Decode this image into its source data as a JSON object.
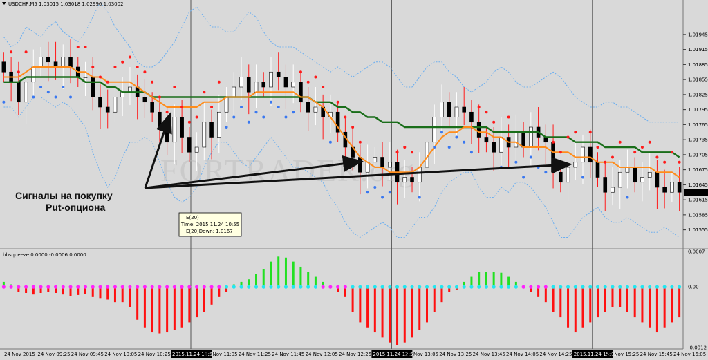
{
  "header": {
    "symbol_info": "USDCHF,M5  1.03015 1.03018 1.02996 1.03002",
    "indicator_title": "bbsqueeze 0.0000 -0.0006 0.0000"
  },
  "watermark": "FORTRADER.org",
  "annotation": {
    "line1": "Сигналы на покупку",
    "line2": "Put-опциона"
  },
  "tooltip": {
    "line1": "__E(20)",
    "line2": "Time: 2015.11.24 10:55",
    "line3": "__E(20)Down: 1.0167"
  },
  "colors": {
    "background": "#d9d9d9",
    "grid": "#555555",
    "bull_candle": "#ffffff",
    "bear_candle": "#000000",
    "ema_green": "#1a6e1a",
    "ema_orange": "#ff8c1a",
    "band": "#6aaef0",
    "psar_red": "#ff1a1a",
    "psar_blue": "#3a78f0",
    "hist_pos": "#22e022",
    "hist_neg": "#ff1010",
    "dot_magenta": "#ff22ff",
    "dot_cyan": "#22e6f0"
  },
  "chart_data": [
    {
      "type": "candlestick",
      "title": "",
      "symbol": "USDCHF",
      "timeframe": "M5",
      "ylim": [
        1.0152,
        1.02
      ],
      "y_ticks": [
        "1.01945",
        "1.01915",
        "1.01885",
        "1.01855",
        "1.01825",
        "1.01795",
        "1.01765",
        "1.01735",
        "1.01705",
        "1.01675",
        "1.01645",
        "1.01615",
        "1.01585",
        "1.01555"
      ],
      "x_ticks": [
        "24 Nov 2015",
        "24 Nov 09:25",
        "24 Nov 09:45",
        "24 Nov 10:05",
        "24 Nov 10:25",
        "2015.11.24 10:50",
        "24 Nov 11:05",
        "24 Nov 11:25",
        "24 Nov 11:45",
        "24 Nov 12:05",
        "24 Nov 12:25",
        "2015.11.24 12:55",
        "24 Nov 13:05",
        "24 Nov 13:25",
        "24 Nov 13:45",
        "24 Nov 14:05",
        "24 Nov 14:25",
        "2015.11.24 15:05",
        "24 Nov 15:25",
        "24 Nov 15:45",
        "24 Nov 16:05"
      ],
      "highlighted_x_ticks": [
        5,
        11,
        17
      ],
      "close": [
        1.0187,
        1.0185,
        1.0181,
        1.0185,
        1.0188,
        1.019,
        1.0189,
        1.0188,
        1.019,
        1.0188,
        1.0186,
        1.0186,
        1.0182,
        1.018,
        1.0179,
        1.0182,
        1.0183,
        1.0184,
        1.0182,
        1.0181,
        1.0179,
        1.0176,
        1.0173,
        1.0178,
        1.0174,
        1.0171,
        1.0172,
        1.0177,
        1.0174,
        1.0179,
        1.0182,
        1.0184,
        1.0186,
        1.0183,
        1.0185,
        1.0184,
        1.0187,
        1.0186,
        1.0184,
        1.0185,
        1.0181,
        1.0179,
        1.018,
        1.0178,
        1.0179,
        1.0175,
        1.0172,
        1.017,
        1.0167,
        1.0169,
        1.017,
        1.0168,
        1.0169,
        1.0165,
        1.0166,
        1.0165,
        1.0168,
        1.0173,
        1.0178,
        1.0181,
        1.0178,
        1.018,
        1.0179,
        1.0177,
        1.0174,
        1.0173,
        1.0171,
        1.0174,
        1.0172,
        1.0175,
        1.0172,
        1.0176,
        1.0174,
        1.0173,
        1.0167,
        1.0165,
        1.0168,
        1.0169,
        1.0172,
        1.0169,
        1.0166,
        1.0163,
        1.0164,
        1.0167,
        1.0168,
        1.0165,
        1.0166,
        1.0167,
        1.0164,
        1.0163,
        1.0165,
        1.0163
      ],
      "ema_green": [
        1.0185,
        1.0185,
        1.0185,
        1.0186,
        1.0186,
        1.0186,
        1.0186,
        1.0186,
        1.0186,
        1.0186,
        1.0186,
        1.0185,
        1.0185,
        1.0185,
        1.0184,
        1.0184,
        1.0183,
        1.0183,
        1.0183,
        1.0183,
        1.0182,
        1.0182,
        1.0182,
        1.0182,
        1.0182,
        1.0182,
        1.0182,
        1.0182,
        1.0182,
        1.0182,
        1.0182,
        1.0182,
        1.0182,
        1.0182,
        1.0182,
        1.0182,
        1.0182,
        1.0182,
        1.0182,
        1.0182,
        1.0182,
        1.0182,
        1.0181,
        1.0181,
        1.0181,
        1.018,
        1.018,
        1.0179,
        1.0179,
        1.0178,
        1.0178,
        1.0177,
        1.0177,
        1.0177,
        1.0176,
        1.0176,
        1.0176,
        1.0176,
        1.0176,
        1.0176,
        1.0176,
        1.0176,
        1.0176,
        1.0176,
        1.0176,
        1.0176,
        1.0175,
        1.0175,
        1.0175,
        1.0175,
        1.0175,
        1.0175,
        1.0175,
        1.0174,
        1.0174,
        1.0174,
        1.0174,
        1.0173,
        1.0173,
        1.0173,
        1.0173,
        1.0172,
        1.0172,
        1.0172,
        1.0172,
        1.0172,
        1.0171,
        1.0171,
        1.0171,
        1.0171,
        1.0171,
        1.017
      ],
      "ema_orange": [
        1.0186,
        1.0186,
        1.0186,
        1.0187,
        1.0188,
        1.0188,
        1.0188,
        1.0188,
        1.0188,
        1.0188,
        1.0187,
        1.0187,
        1.0186,
        1.0186,
        1.0185,
        1.0185,
        1.0185,
        1.0185,
        1.0184,
        1.0183,
        1.0182,
        1.0181,
        1.018,
        1.018,
        1.018,
        1.018,
        1.018,
        1.0181,
        1.0181,
        1.0181,
        1.0182,
        1.0182,
        1.0182,
        1.0182,
        1.0183,
        1.0183,
        1.0183,
        1.0183,
        1.0183,
        1.0183,
        1.0182,
        1.0182,
        1.0181,
        1.018,
        1.0178,
        1.0176,
        1.0174,
        1.0172,
        1.017,
        1.0169,
        1.0168,
        1.0168,
        1.0167,
        1.0167,
        1.0167,
        1.0167,
        1.0168,
        1.017,
        1.0172,
        1.0174,
        1.0175,
        1.0175,
        1.0176,
        1.0176,
        1.0175,
        1.0175,
        1.0174,
        1.0174,
        1.0173,
        1.0173,
        1.0172,
        1.0172,
        1.0172,
        1.0172,
        1.0171,
        1.0171,
        1.0171,
        1.017,
        1.017,
        1.017,
        1.0169,
        1.0169,
        1.0169,
        1.0168,
        1.0168,
        1.0168,
        1.0168,
        1.0168,
        1.0167,
        1.0167,
        1.0167,
        1.0166
      ],
      "band_upper": [
        1.0194,
        1.0192,
        1.0193,
        1.0196,
        1.0195,
        1.0194,
        1.0196,
        1.0197,
        1.0195,
        1.0194,
        1.0193,
        1.0195,
        1.0198,
        1.0201,
        1.0199,
        1.0196,
        1.0194,
        1.0192,
        1.0189,
        1.0188,
        1.0188,
        1.0189,
        1.0191,
        1.0193,
        1.0196,
        1.0199,
        1.02,
        1.0198,
        1.0196,
        1.0196,
        1.0195,
        1.0195,
        1.0197,
        1.0199,
        1.0198,
        1.0195,
        1.0193,
        1.0192,
        1.0192,
        1.0192,
        1.0191,
        1.019,
        1.0189,
        1.0188,
        1.0187,
        1.0188,
        1.0187,
        1.0186,
        1.0187,
        1.0188,
        1.0189,
        1.0189,
        1.0188,
        1.0186,
        1.0184,
        1.0184,
        1.0186,
        1.0188,
        1.0189,
        1.0189,
        1.0187,
        1.0186,
        1.0184,
        1.0183,
        1.0184,
        1.0185,
        1.0187,
        1.0188,
        1.0187,
        1.0185,
        1.0184,
        1.0184,
        1.0185,
        1.0186,
        1.0187,
        1.0186,
        1.0184,
        1.0182,
        1.0181,
        1.018,
        1.018,
        1.0181,
        1.0181,
        1.018,
        1.018,
        1.0179,
        1.0178,
        1.0177,
        1.0177,
        1.0177,
        1.0177,
        1.0177
      ],
      "band_lower": [
        1.018,
        1.018,
        1.0178,
        1.018,
        1.0182,
        1.0182,
        1.0181,
        1.018,
        1.0181,
        1.018,
        1.0178,
        1.0176,
        1.0171,
        1.0167,
        1.0164,
        1.0166,
        1.017,
        1.0173,
        1.0173,
        1.0174,
        1.0173,
        1.0169,
        1.0165,
        1.0162,
        1.0161,
        1.0162,
        1.0164,
        1.0168,
        1.0171,
        1.0173,
        1.0173,
        1.0171,
        1.0169,
        1.0168,
        1.017,
        1.0172,
        1.0174,
        1.0172,
        1.017,
        1.0168,
        1.0168,
        1.0167,
        1.0166,
        1.0165,
        1.0162,
        1.016,
        1.0157,
        1.0155,
        1.0154,
        1.0155,
        1.0156,
        1.0157,
        1.0156,
        1.0154,
        1.0154,
        1.0156,
        1.0158,
        1.0158,
        1.016,
        1.0163,
        1.0165,
        1.0166,
        1.0167,
        1.0167,
        1.0164,
        1.0162,
        1.0162,
        1.0164,
        1.0163,
        1.0165,
        1.0165,
        1.0164,
        1.0162,
        1.016,
        1.0157,
        1.0154,
        1.0154,
        1.0156,
        1.0158,
        1.0159,
        1.016,
        1.0158,
        1.0157,
        1.0157,
        1.0158,
        1.0157,
        1.0156,
        1.0155,
        1.0155,
        1.0156,
        1.0155,
        1.0154
      ]
    },
    {
      "type": "bar",
      "title": "bbsqueeze",
      "ylim": [
        -0.0012,
        0.0007
      ],
      "y_ticks": [
        "0.0007",
        "0.00",
        "-0.0012"
      ],
      "values": [
        0.0001,
        5e-05,
        -0.0001,
        -0.00012,
        -0.00015,
        -0.00012,
        -0.0001,
        -0.00012,
        -0.00015,
        -0.00018,
        -0.00016,
        -0.00014,
        -0.0002,
        -0.00022,
        -0.00025,
        -0.0003,
        -0.0003,
        -0.0004,
        -0.00065,
        -0.0008,
        -0.0009,
        -0.00092,
        -0.0009,
        -0.00085,
        -0.0008,
        -0.0007,
        -0.0006,
        -0.0005,
        -0.00035,
        -0.0002,
        -0.0001,
        5e-05,
        0.0001,
        0.00015,
        0.00025,
        0.00035,
        0.0005,
        0.0006,
        0.00058,
        0.0005,
        0.0004,
        0.0003,
        0.0002,
        0.0001,
        0.0,
        -0.0001,
        -0.0002,
        -0.0005,
        -0.0007,
        -0.0008,
        -0.0009,
        -0.001,
        -0.0011,
        -0.00115,
        -0.0011,
        -0.001,
        -0.00085,
        -0.0007,
        -0.0005,
        -0.0003,
        -0.0001,
        -5e-05,
        0.0001,
        0.0002,
        0.0003,
        0.0003,
        0.0003,
        0.00028,
        0.0002,
        0.0001,
        0.0,
        -0.0001,
        -0.0002,
        -0.0003,
        -0.0005,
        -0.0006,
        -0.0008,
        -0.0009,
        -0.0008,
        -0.0007,
        -0.0006,
        -0.0005,
        -0.0004,
        -0.0004,
        -0.0005,
        -0.0006,
        -0.0007,
        -0.0008,
        -0.0009,
        -0.0008,
        -0.0007,
        -0.0006
      ]
    }
  ]
}
